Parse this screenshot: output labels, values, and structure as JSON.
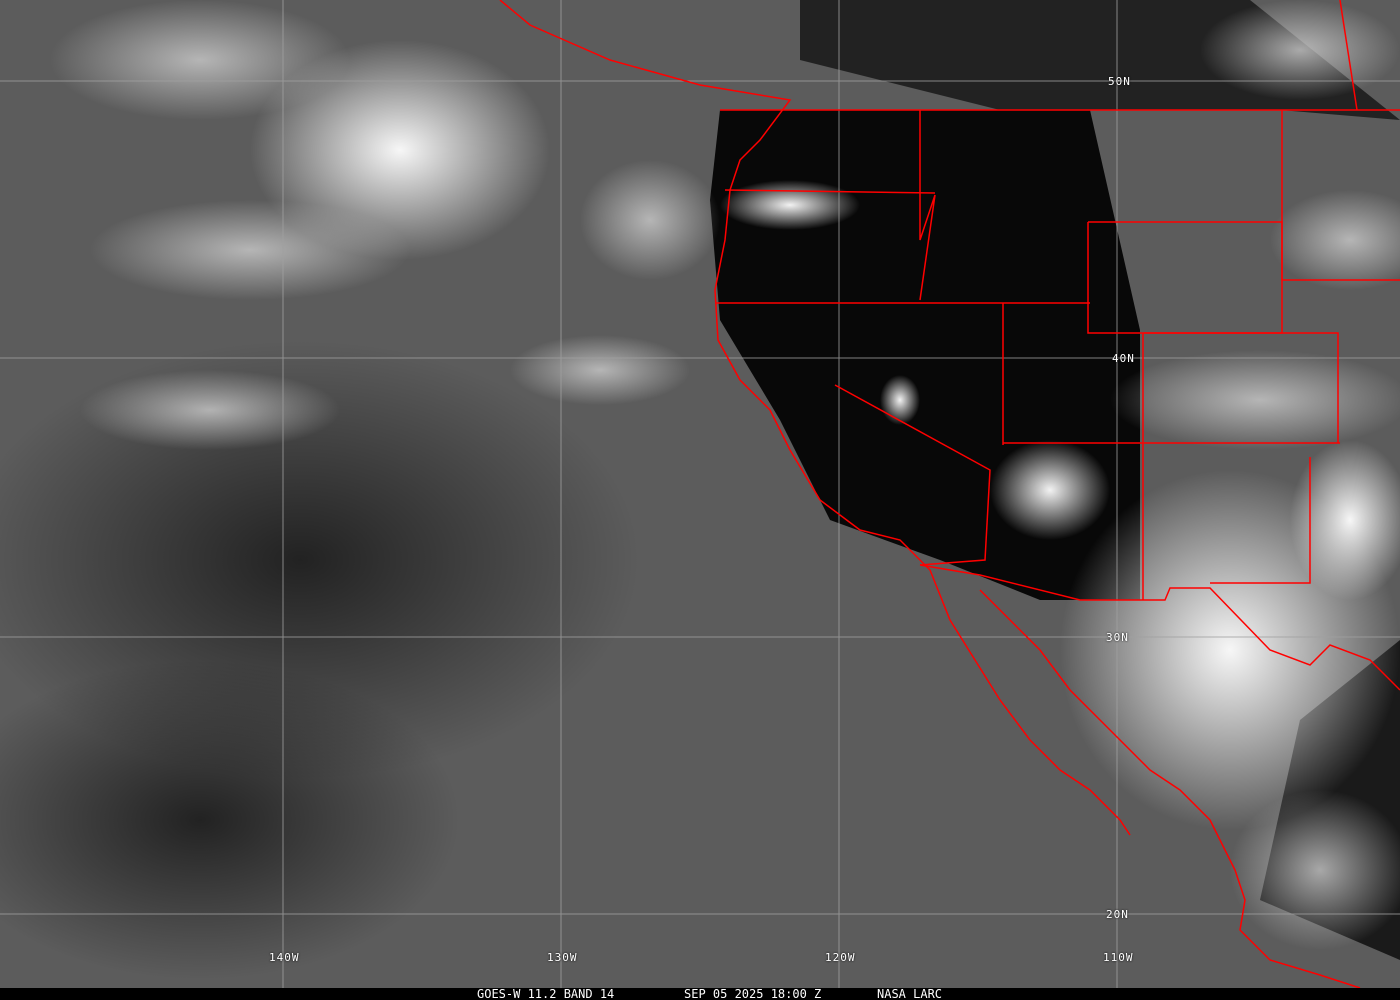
{
  "caption": {
    "satellite": "GOES-W 11.2 BAND 14",
    "datetime": "SEP 05 2025 18:00 Z",
    "source": "NASA LARC"
  },
  "grid": {
    "longitudes": [
      "140W",
      "130W",
      "120W",
      "110W"
    ],
    "latitudes": [
      "50N",
      "40N",
      "30N",
      "20N"
    ]
  },
  "colors": {
    "borders": "#ff0000",
    "grid": "#a0a0a0"
  }
}
